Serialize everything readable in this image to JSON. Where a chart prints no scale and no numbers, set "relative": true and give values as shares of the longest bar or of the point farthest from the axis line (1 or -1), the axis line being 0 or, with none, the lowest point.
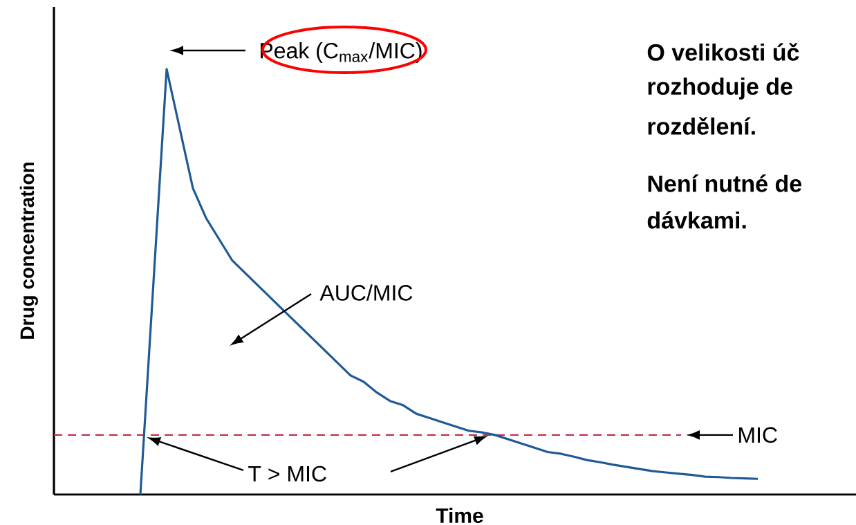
{
  "chart_data": {
    "type": "line",
    "relative": true,
    "xlabel": "Time",
    "ylabel": "Drug concentration",
    "categories": [
      null,
      null,
      null,
      null,
      null,
      null,
      null,
      null,
      null,
      null,
      null,
      null,
      null,
      null,
      null,
      null,
      null,
      null,
      null,
      null,
      null,
      null,
      null,
      null,
      null,
      null,
      null,
      null,
      null,
      null,
      null,
      null,
      null,
      null,
      null,
      null,
      null,
      null,
      null,
      null,
      null,
      null,
      null,
      null,
      null,
      null,
      null,
      null
    ],
    "series": [
      {
        "color": "#1f5a96",
        "values": [
          0,
          0.5,
          1.0,
          0.86,
          0.72,
          0.65,
          0.6,
          0.55,
          0.52,
          0.49,
          0.46,
          0.43,
          0.4,
          0.37,
          0.34,
          0.31,
          0.28,
          0.265,
          0.24,
          0.22,
          0.21,
          0.19,
          0.18,
          0.17,
          0.16,
          0.15,
          0.146,
          0.14,
          0.13,
          0.12,
          0.11,
          0.1,
          0.096,
          0.089,
          0.081,
          0.076,
          0.07,
          0.065,
          0.06,
          0.055,
          0.052,
          0.049,
          0.046,
          0.042,
          0.041,
          0.039,
          0.038,
          0.037
        ]
      }
    ],
    "ref_lines": [
      {
        "axis": "y",
        "value": 0.14,
        "label": "MIC",
        "color": "#c8304a",
        "line_style": "dashed"
      }
    ],
    "annotations": [
      "Peak (C$_{max}$/MIC)",
      "AUC/MIC",
      "T > MIC",
      "O velikosti úč",
      "rozhoduje de",
      "rozdělení.",
      "Není nutné de",
      "dávkami."
    ],
    "marker": "none"
  }
}
